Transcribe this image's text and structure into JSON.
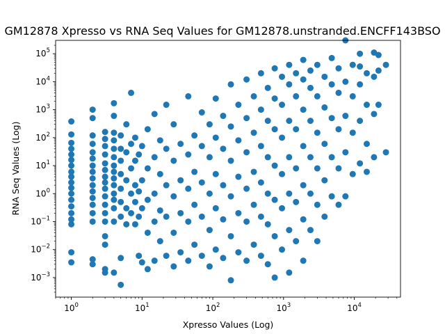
{
  "chart_data": {
    "type": "scatter",
    "title": "GM12878 Xpresso vs RNA Seq Values for GM12878.unstranded.ENCFF143BSO",
    "xlabel": "Xpresso Values (Log)",
    "ylabel": "RNA Seq Values (Log)",
    "xscale": "log",
    "yscale": "log",
    "xlim": [
      0.6,
      45000
    ],
    "ylim": [
      0.0002,
      300000
    ],
    "xticks": [
      {
        "base": "10",
        "exp": "0",
        "value": 1
      },
      {
        "base": "10",
        "exp": "1",
        "value": 10
      },
      {
        "base": "10",
        "exp": "2",
        "value": 100
      },
      {
        "base": "10",
        "exp": "3",
        "value": 1000
      },
      {
        "base": "10",
        "exp": "4",
        "value": 10000
      }
    ],
    "yticks": [
      {
        "base": "10",
        "exp": "−3",
        "value": 0.001
      },
      {
        "base": "10",
        "exp": "−2",
        "value": 0.01
      },
      {
        "base": "10",
        "exp": "−1",
        "value": 0.1
      },
      {
        "base": "10",
        "exp": "0",
        "value": 1
      },
      {
        "base": "10",
        "exp": "1",
        "value": 10
      },
      {
        "base": "10",
        "exp": "2",
        "value": 100
      },
      {
        "base": "10",
        "exp": "3",
        "value": 1000
      },
      {
        "base": "10",
        "exp": "4",
        "value": 10000
      },
      {
        "base": "10",
        "exp": "5",
        "value": 100000
      }
    ],
    "grid": false,
    "color": "#1f77b4",
    "points": [
      [
        1,
        0.0035
      ],
      [
        1,
        0.008
      ],
      [
        1,
        0.08
      ],
      [
        1,
        0.12
      ],
      [
        1,
        0.2
      ],
      [
        1,
        0.35
      ],
      [
        1,
        0.6
      ],
      [
        1,
        1
      ],
      [
        1,
        1.6
      ],
      [
        1,
        2.5
      ],
      [
        1,
        4
      ],
      [
        1,
        6
      ],
      [
        1,
        10
      ],
      [
        1,
        16
      ],
      [
        1,
        25
      ],
      [
        1,
        40
      ],
      [
        1,
        65
      ],
      [
        1,
        130
      ],
      [
        1,
        380
      ],
      [
        2,
        0.003
      ],
      [
        2,
        0.0045
      ],
      [
        2,
        0.1
      ],
      [
        2,
        0.2
      ],
      [
        2,
        0.4
      ],
      [
        2,
        0.7
      ],
      [
        2,
        1.2
      ],
      [
        2,
        2
      ],
      [
        2,
        3.5
      ],
      [
        2,
        6
      ],
      [
        2,
        10
      ],
      [
        2,
        18
      ],
      [
        2,
        30
      ],
      [
        2,
        60
      ],
      [
        2,
        120
      ],
      [
        2,
        500
      ],
      [
        2,
        1000
      ],
      [
        3,
        0.0015
      ],
      [
        3,
        0.002
      ],
      [
        3,
        0.015
      ],
      [
        3,
        0.03
      ],
      [
        3,
        0.1
      ],
      [
        3,
        0.2
      ],
      [
        3,
        0.4
      ],
      [
        3,
        0.8
      ],
      [
        3,
        1.5
      ],
      [
        3,
        2.5
      ],
      [
        3,
        4
      ],
      [
        3,
        7
      ],
      [
        3,
        12
      ],
      [
        3,
        25
      ],
      [
        3,
        50
      ],
      [
        3,
        90
      ],
      [
        3,
        160
      ],
      [
        4,
        0.0015
      ],
      [
        4,
        0.1
      ],
      [
        4,
        0.3
      ],
      [
        4,
        0.6
      ],
      [
        4,
        1
      ],
      [
        4,
        2
      ],
      [
        4,
        3.5
      ],
      [
        4,
        6
      ],
      [
        4,
        10
      ],
      [
        4,
        20
      ],
      [
        4,
        40
      ],
      [
        4,
        80
      ],
      [
        4,
        150
      ],
      [
        4,
        600
      ],
      [
        4,
        1700
      ],
      [
        5,
        0.00055
      ],
      [
        5,
        0.005
      ],
      [
        5,
        0.15
      ],
      [
        5,
        0.5
      ],
      [
        5,
        1.5
      ],
      [
        5,
        5
      ],
      [
        5,
        15
      ],
      [
        5,
        40
      ],
      [
        5,
        120
      ],
      [
        6,
        0.08
      ],
      [
        6,
        0.3
      ],
      [
        6,
        3
      ],
      [
        6,
        30
      ],
      [
        6,
        300
      ],
      [
        7,
        0.2
      ],
      [
        7,
        1
      ],
      [
        7,
        8
      ],
      [
        7,
        60
      ],
      [
        7,
        4000
      ],
      [
        8,
        0.08
      ],
      [
        8,
        0.5
      ],
      [
        8,
        2
      ],
      [
        8,
        15
      ],
      [
        8,
        100
      ],
      [
        9,
        0.006
      ],
      [
        9,
        0.15
      ],
      [
        9,
        1.2
      ],
      [
        9,
        25
      ],
      [
        10,
        0.0035
      ],
      [
        10,
        0.3
      ],
      [
        10,
        3
      ],
      [
        10,
        50
      ],
      [
        12,
        0.002
      ],
      [
        12,
        0.04
      ],
      [
        12,
        0.6
      ],
      [
        12,
        8
      ],
      [
        12,
        200
      ],
      [
        15,
        0.004
      ],
      [
        15,
        0.1
      ],
      [
        15,
        1
      ],
      [
        15,
        20
      ],
      [
        15,
        700
      ],
      [
        18,
        0.02
      ],
      [
        18,
        0.25
      ],
      [
        18,
        5
      ],
      [
        18,
        80
      ],
      [
        22,
        0.006
      ],
      [
        22,
        0.15
      ],
      [
        22,
        2
      ],
      [
        22,
        40
      ],
      [
        22,
        1500
      ],
      [
        28,
        0.0025
      ],
      [
        28,
        0.04
      ],
      [
        28,
        0.8
      ],
      [
        28,
        15
      ],
      [
        28,
        300
      ],
      [
        35,
        0.008
      ],
      [
        35,
        0.2
      ],
      [
        35,
        3
      ],
      [
        35,
        60
      ],
      [
        45,
        0.004
      ],
      [
        45,
        0.1
      ],
      [
        45,
        1.5
      ],
      [
        45,
        25
      ],
      [
        45,
        3000
      ],
      [
        55,
        0.015
      ],
      [
        55,
        0.4
      ],
      [
        55,
        6
      ],
      [
        55,
        120
      ],
      [
        70,
        0.006
      ],
      [
        70,
        0.15
      ],
      [
        70,
        2.5
      ],
      [
        70,
        50
      ],
      [
        70,
        800
      ],
      [
        90,
        0.0025
      ],
      [
        90,
        0.05
      ],
      [
        90,
        1
      ],
      [
        90,
        20
      ],
      [
        90,
        300
      ],
      [
        110,
        0.01
      ],
      [
        110,
        0.3
      ],
      [
        110,
        5
      ],
      [
        110,
        100
      ],
      [
        110,
        2500
      ],
      [
        140,
        0.005
      ],
      [
        140,
        0.12
      ],
      [
        140,
        2
      ],
      [
        140,
        40
      ],
      [
        140,
        600
      ],
      [
        180,
        0.0008
      ],
      [
        180,
        0.03
      ],
      [
        180,
        0.8
      ],
      [
        180,
        15
      ],
      [
        180,
        250
      ],
      [
        180,
        8000
      ],
      [
        230,
        0.008
      ],
      [
        230,
        0.2
      ],
      [
        230,
        4
      ],
      [
        230,
        80
      ],
      [
        230,
        1500
      ],
      [
        300,
        0.004
      ],
      [
        300,
        0.1
      ],
      [
        300,
        1.5
      ],
      [
        300,
        30
      ],
      [
        300,
        500
      ],
      [
        300,
        12000
      ],
      [
        380,
        0.015
      ],
      [
        380,
        0.4
      ],
      [
        380,
        6
      ],
      [
        380,
        150
      ],
      [
        380,
        3000
      ],
      [
        480,
        0.006
      ],
      [
        480,
        0.15
      ],
      [
        480,
        2.5
      ],
      [
        480,
        50
      ],
      [
        480,
        1000
      ],
      [
        480,
        20000
      ],
      [
        600,
        0.003
      ],
      [
        600,
        0.08
      ],
      [
        600,
        1
      ],
      [
        600,
        20
      ],
      [
        600,
        400
      ],
      [
        600,
        6000
      ],
      [
        750,
        0.001
      ],
      [
        750,
        0.03
      ],
      [
        750,
        0.6
      ],
      [
        750,
        10
      ],
      [
        750,
        200
      ],
      [
        750,
        2500
      ],
      [
        750,
        30000
      ],
      [
        950,
        0.01
      ],
      [
        950,
        0.3
      ],
      [
        950,
        5
      ],
      [
        950,
        100
      ],
      [
        950,
        1500
      ],
      [
        950,
        15000
      ],
      [
        1200,
        0.0015
      ],
      [
        1200,
        0.05
      ],
      [
        1200,
        1
      ],
      [
        1200,
        20
      ],
      [
        1200,
        400
      ],
      [
        1200,
        8000
      ],
      [
        1200,
        40000
      ],
      [
        1500,
        0.02
      ],
      [
        1500,
        0.5
      ],
      [
        1500,
        8
      ],
      [
        1500,
        200
      ],
      [
        1500,
        3000
      ],
      [
        1500,
        20000
      ],
      [
        1900,
        0.004
      ],
      [
        1900,
        0.12
      ],
      [
        1900,
        2
      ],
      [
        1900,
        50
      ],
      [
        1900,
        1000
      ],
      [
        1900,
        12000
      ],
      [
        1900,
        60000
      ],
      [
        2400,
        0.05
      ],
      [
        2400,
        1
      ],
      [
        2400,
        20
      ],
      [
        2400,
        400
      ],
      [
        2400,
        6000
      ],
      [
        2400,
        25000
      ],
      [
        3000,
        0.02
      ],
      [
        3000,
        0.4
      ],
      [
        3000,
        8
      ],
      [
        3000,
        150
      ],
      [
        3000,
        3000
      ],
      [
        3000,
        40000
      ],
      [
        3800,
        0.15
      ],
      [
        3800,
        3
      ],
      [
        3800,
        60
      ],
      [
        3800,
        1200
      ],
      [
        3800,
        15000
      ],
      [
        4800,
        0.8
      ],
      [
        4800,
        20
      ],
      [
        4800,
        500
      ],
      [
        4800,
        8000
      ],
      [
        4800,
        70000
      ],
      [
        6000,
        0.4
      ],
      [
        6000,
        8
      ],
      [
        6000,
        200
      ],
      [
        6000,
        4000
      ],
      [
        6000,
        30000
      ],
      [
        7500,
        0.8
      ],
      [
        7500,
        30
      ],
      [
        7500,
        600
      ],
      [
        7500,
        10000
      ],
      [
        7500,
        300000
      ],
      [
        9500,
        5
      ],
      [
        9500,
        150
      ],
      [
        9500,
        3000
      ],
      [
        9500,
        40000
      ],
      [
        12000,
        12
      ],
      [
        12000,
        400
      ],
      [
        12000,
        8000
      ],
      [
        12000,
        35000
      ],
      [
        12000,
        100000
      ],
      [
        15000,
        6
      ],
      [
        15000,
        60
      ],
      [
        15000,
        1500
      ],
      [
        15000,
        20000
      ],
      [
        19000,
        20
      ],
      [
        19000,
        700
      ],
      [
        19000,
        15000
      ],
      [
        19000,
        110000
      ],
      [
        22000,
        1500
      ],
      [
        22000,
        25000
      ],
      [
        22000,
        90000
      ],
      [
        28000,
        30
      ],
      [
        28000,
        40000
      ]
    ]
  }
}
